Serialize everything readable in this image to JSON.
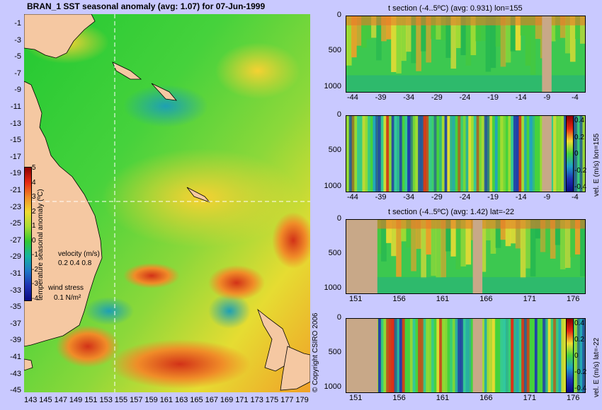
{
  "map": {
    "title": "BRAN_1  SST seasonal anomaly (avg: 1.07) for 07-Jun-1999",
    "y_ticks": [
      "-1",
      "-3",
      "-5",
      "-7",
      "-9",
      "-11",
      "-13",
      "-15",
      "-17",
      "-19",
      "-21",
      "-23",
      "-25",
      "-27",
      "-29",
      "-31",
      "-33",
      "-35",
      "-37",
      "-39",
      "-41",
      "-43",
      "-45"
    ],
    "x_ticks": [
      "143",
      "145",
      "147",
      "149",
      "151",
      "153",
      "155",
      "157",
      "159",
      "161",
      "163",
      "165",
      "167",
      "169",
      "171",
      "173",
      "175",
      "177",
      "179"
    ],
    "colorbar": {
      "ticks": [
        "5",
        "4",
        "3",
        "2",
        "1",
        "0",
        "-1",
        "-2",
        "-3",
        "-4"
      ],
      "label": "temperature seasonal anomaly (ºC)"
    },
    "velocity_legend": {
      "title": "velocity (m/s)",
      "values": "0.2 0.4 0.8"
    },
    "wind_legend": {
      "title": "wind stress",
      "value": "0.1 N/m²"
    }
  },
  "panels": [
    {
      "title": "t section (-4..5ºC) (avg: 0.931) lon=155",
      "y_ticks": [
        "0",
        "500",
        "1000"
      ],
      "x_ticks": [
        "-44",
        "-39",
        "-34",
        "-29",
        "-24",
        "-19",
        "-14",
        "-9",
        "-4"
      ]
    },
    {
      "title": "",
      "y_ticks": [
        "0",
        "500",
        "1000"
      ],
      "x_ticks": [
        "-44",
        "-39",
        "-34",
        "-29",
        "-24",
        "-19",
        "-14",
        "-9",
        "-4"
      ],
      "colorbar_ticks": [
        "0.4",
        "0.2",
        "0",
        "-0.2",
        "-0.4"
      ],
      "colorbar_label": "vel. E (m/s) lon=155"
    },
    {
      "title": "t section (-4..5ºC) (avg: 1.42) lat=-22",
      "y_ticks": [
        "0",
        "500",
        "1000"
      ],
      "x_ticks": [
        "151",
        "156",
        "161",
        "166",
        "171",
        "176"
      ]
    },
    {
      "title": "",
      "y_ticks": [
        "0",
        "500",
        "1000"
      ],
      "x_ticks": [
        "151",
        "156",
        "161",
        "166",
        "171",
        "176"
      ],
      "colorbar_ticks": [
        "0.4",
        "0.2",
        "0",
        "-0.2",
        "-0.4"
      ],
      "colorbar_label": "vel. E (m/s) lat=-22"
    }
  ],
  "copyright": "© Copyright CSIRO 2006",
  "colors": {
    "background": "#c9c9ff",
    "land": "#f5c8a2",
    "section_land": "#c8a888"
  }
}
